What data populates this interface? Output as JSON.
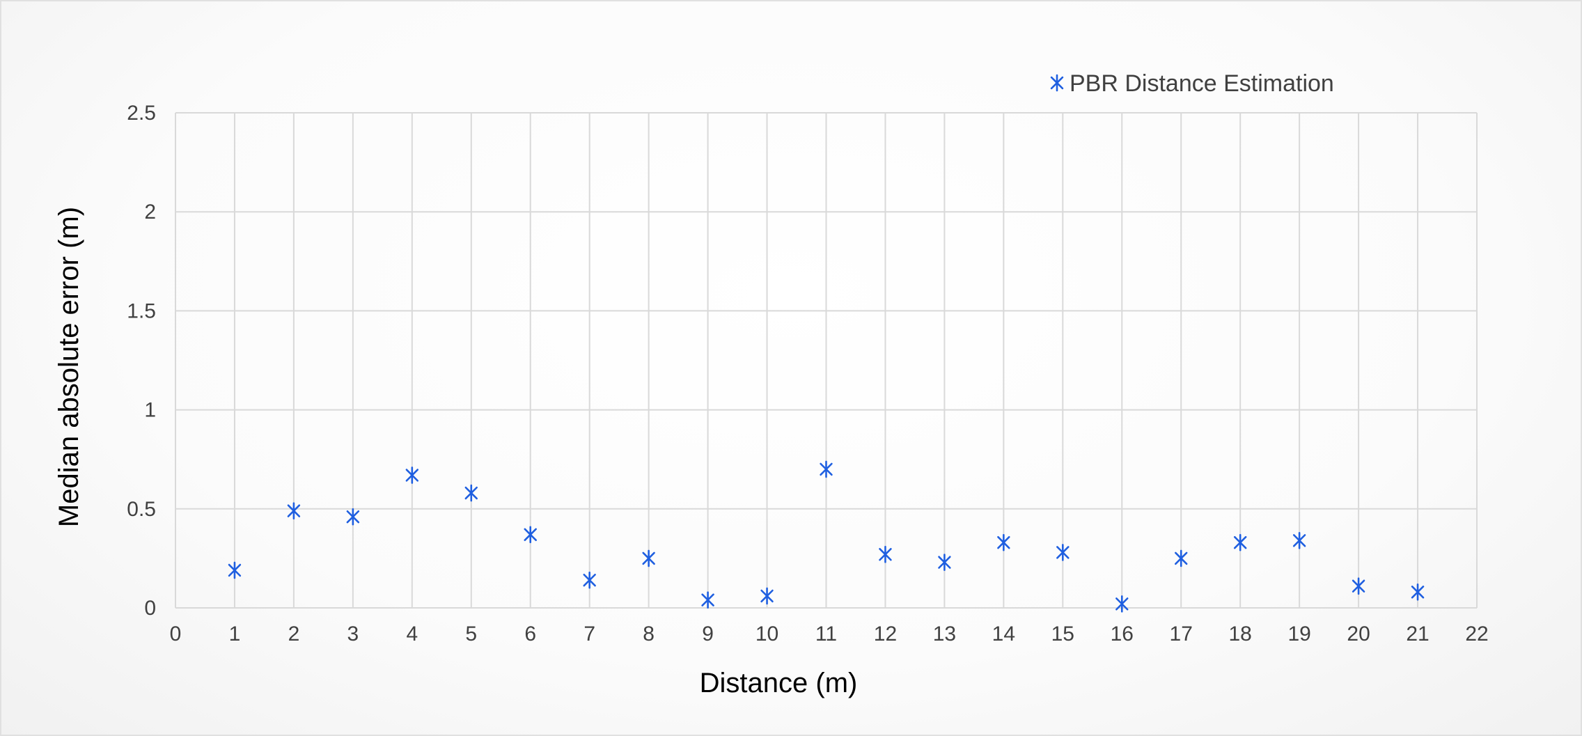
{
  "chart_data": {
    "type": "scatter",
    "title": "",
    "xlabel": "Distance (m)",
    "ylabel": "Median absolute error (m)",
    "xlim": [
      0,
      22
    ],
    "ylim": [
      0,
      2.5
    ],
    "x_ticks": [
      0,
      1,
      2,
      3,
      4,
      5,
      6,
      7,
      8,
      9,
      10,
      11,
      12,
      13,
      14,
      15,
      16,
      17,
      18,
      19,
      20,
      21,
      22
    ],
    "y_ticks": [
      0,
      0.5,
      1,
      1.5,
      2,
      2.5
    ],
    "x_tick_labels": [
      "0",
      "1",
      "2",
      "3",
      "4",
      "5",
      "6",
      "7",
      "8",
      "9",
      "10",
      "11",
      "12",
      "13",
      "14",
      "15",
      "16",
      "17",
      "18",
      "19",
      "20",
      "21",
      "22"
    ],
    "y_tick_labels": [
      "0",
      "0.5",
      "1",
      "1.5",
      "2",
      "2.5"
    ],
    "grid": true,
    "legend_position": "top-right",
    "marker": "asterisk",
    "series": [
      {
        "name": "PBR Distance Estimation",
        "color": "#1f5fe0",
        "x": [
          1,
          2,
          3,
          4,
          5,
          6,
          7,
          8,
          9,
          10,
          11,
          12,
          13,
          14,
          15,
          16,
          17,
          18,
          19,
          20,
          21
        ],
        "y": [
          0.19,
          0.49,
          0.46,
          0.67,
          0.58,
          0.37,
          0.14,
          0.25,
          0.04,
          0.06,
          0.7,
          0.27,
          0.23,
          0.33,
          0.28,
          0.02,
          0.25,
          0.33,
          0.34,
          0.11,
          0.08
        ]
      }
    ]
  }
}
